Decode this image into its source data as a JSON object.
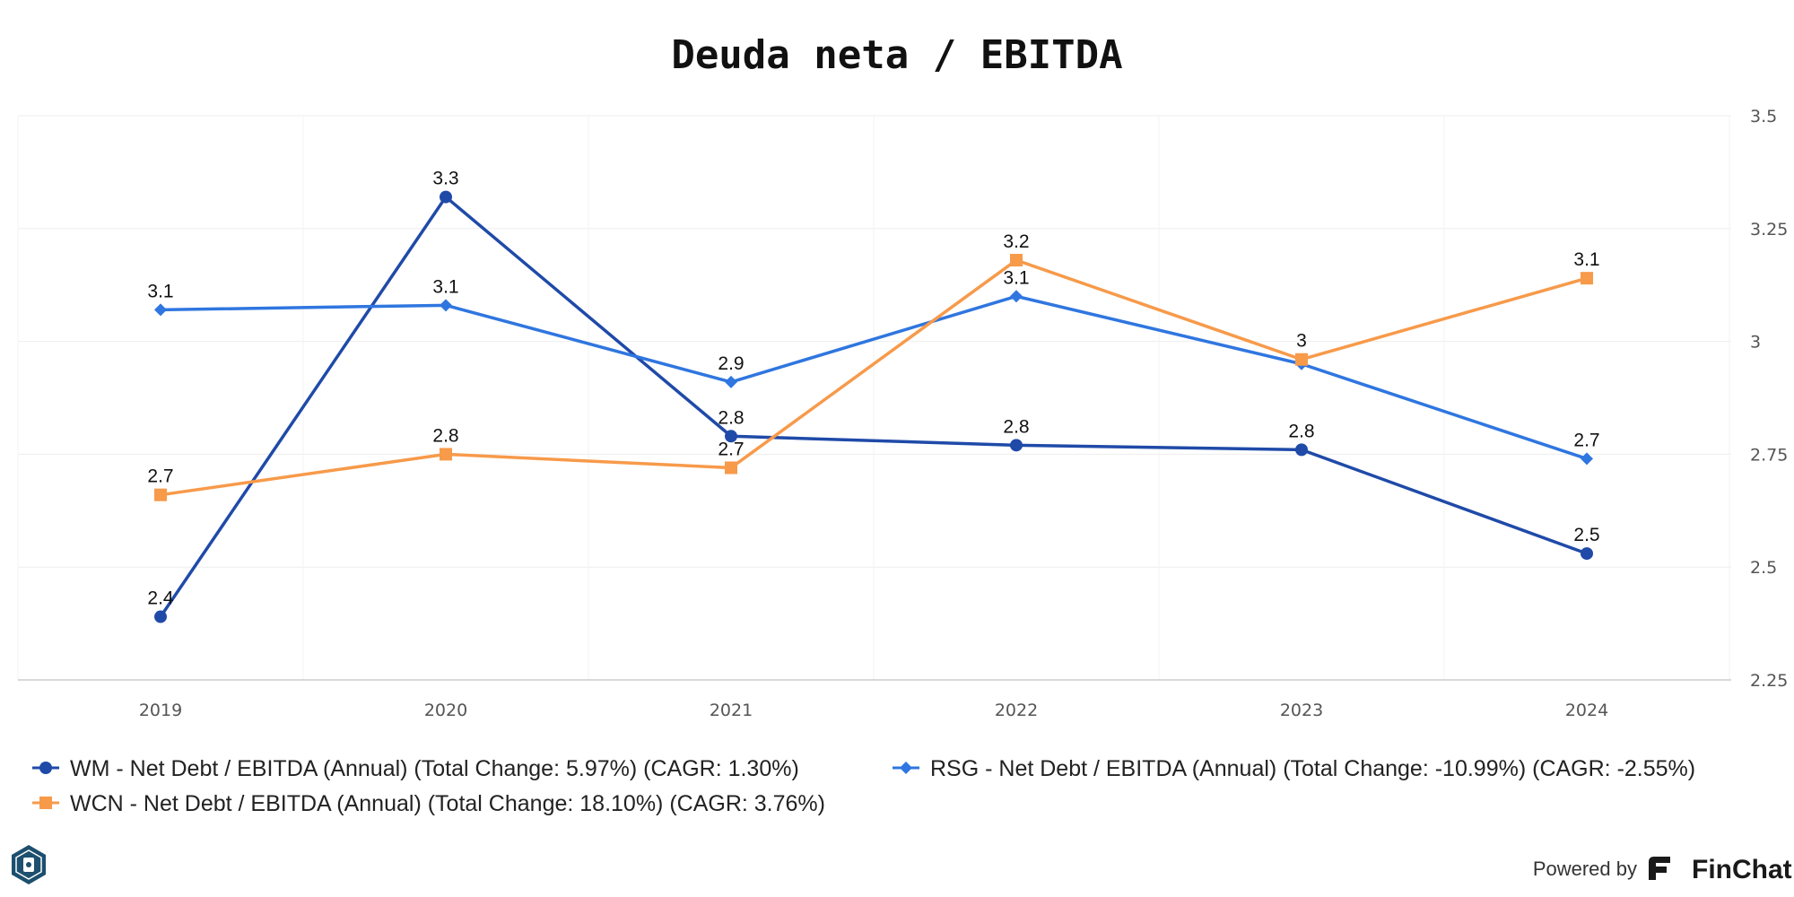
{
  "chart_data": {
    "type": "line",
    "title": "Deuda neta / EBITDA",
    "xlabel": "",
    "ylabel": "",
    "categories": [
      "2019",
      "2020",
      "2021",
      "2022",
      "2023",
      "2024"
    ],
    "ylim": [
      2.25,
      3.5
    ],
    "y_ticks": [
      2.25,
      2.5,
      2.75,
      3,
      3.25,
      3.5
    ],
    "y_axis_position": "right",
    "grid": true,
    "legend_position": "bottom",
    "series": [
      {
        "name": "WM - Net Debt / EBITDA (Annual) (Total Change: 5.97%) (CAGR: 1.30%)",
        "values": [
          2.39,
          3.32,
          2.79,
          2.77,
          2.76,
          2.53
        ],
        "labels": [
          "2.4",
          "3.3",
          "2.8",
          "2.8",
          "2.8",
          "2.5"
        ],
        "color": "#1f4aa8",
        "marker": "circle"
      },
      {
        "name": "RSG - Net Debt / EBITDA (Annual) (Total Change: -10.99%) (CAGR: -2.55%)",
        "values": [
          3.07,
          3.08,
          2.91,
          3.1,
          2.95,
          2.74
        ],
        "labels": [
          "3.1",
          "3.1",
          "2.9",
          "3.1",
          "",
          "2.7"
        ],
        "color": "#2f76e0",
        "marker": "diamond"
      },
      {
        "name": "WCN - Net Debt / EBITDA (Annual) (Total Change: 18.10%) (CAGR: 3.76%)",
        "values": [
          2.66,
          2.75,
          2.72,
          3.18,
          2.96,
          3.14
        ],
        "labels": [
          "2.7",
          "2.8",
          "2.7",
          "3.2",
          "3",
          "3.1"
        ],
        "color": "#f79a4a",
        "marker": "square"
      }
    ]
  },
  "footer": {
    "powered_by": "Powered by",
    "brand": "FinChat"
  },
  "colors": {
    "grid": "#eeeeee",
    "axis": "#cccccc",
    "logo_bg": "#1d4f6e"
  },
  "icons": {
    "corner_logo": "finchat-badge-icon",
    "brand_logo": "finchat-f-icon"
  }
}
